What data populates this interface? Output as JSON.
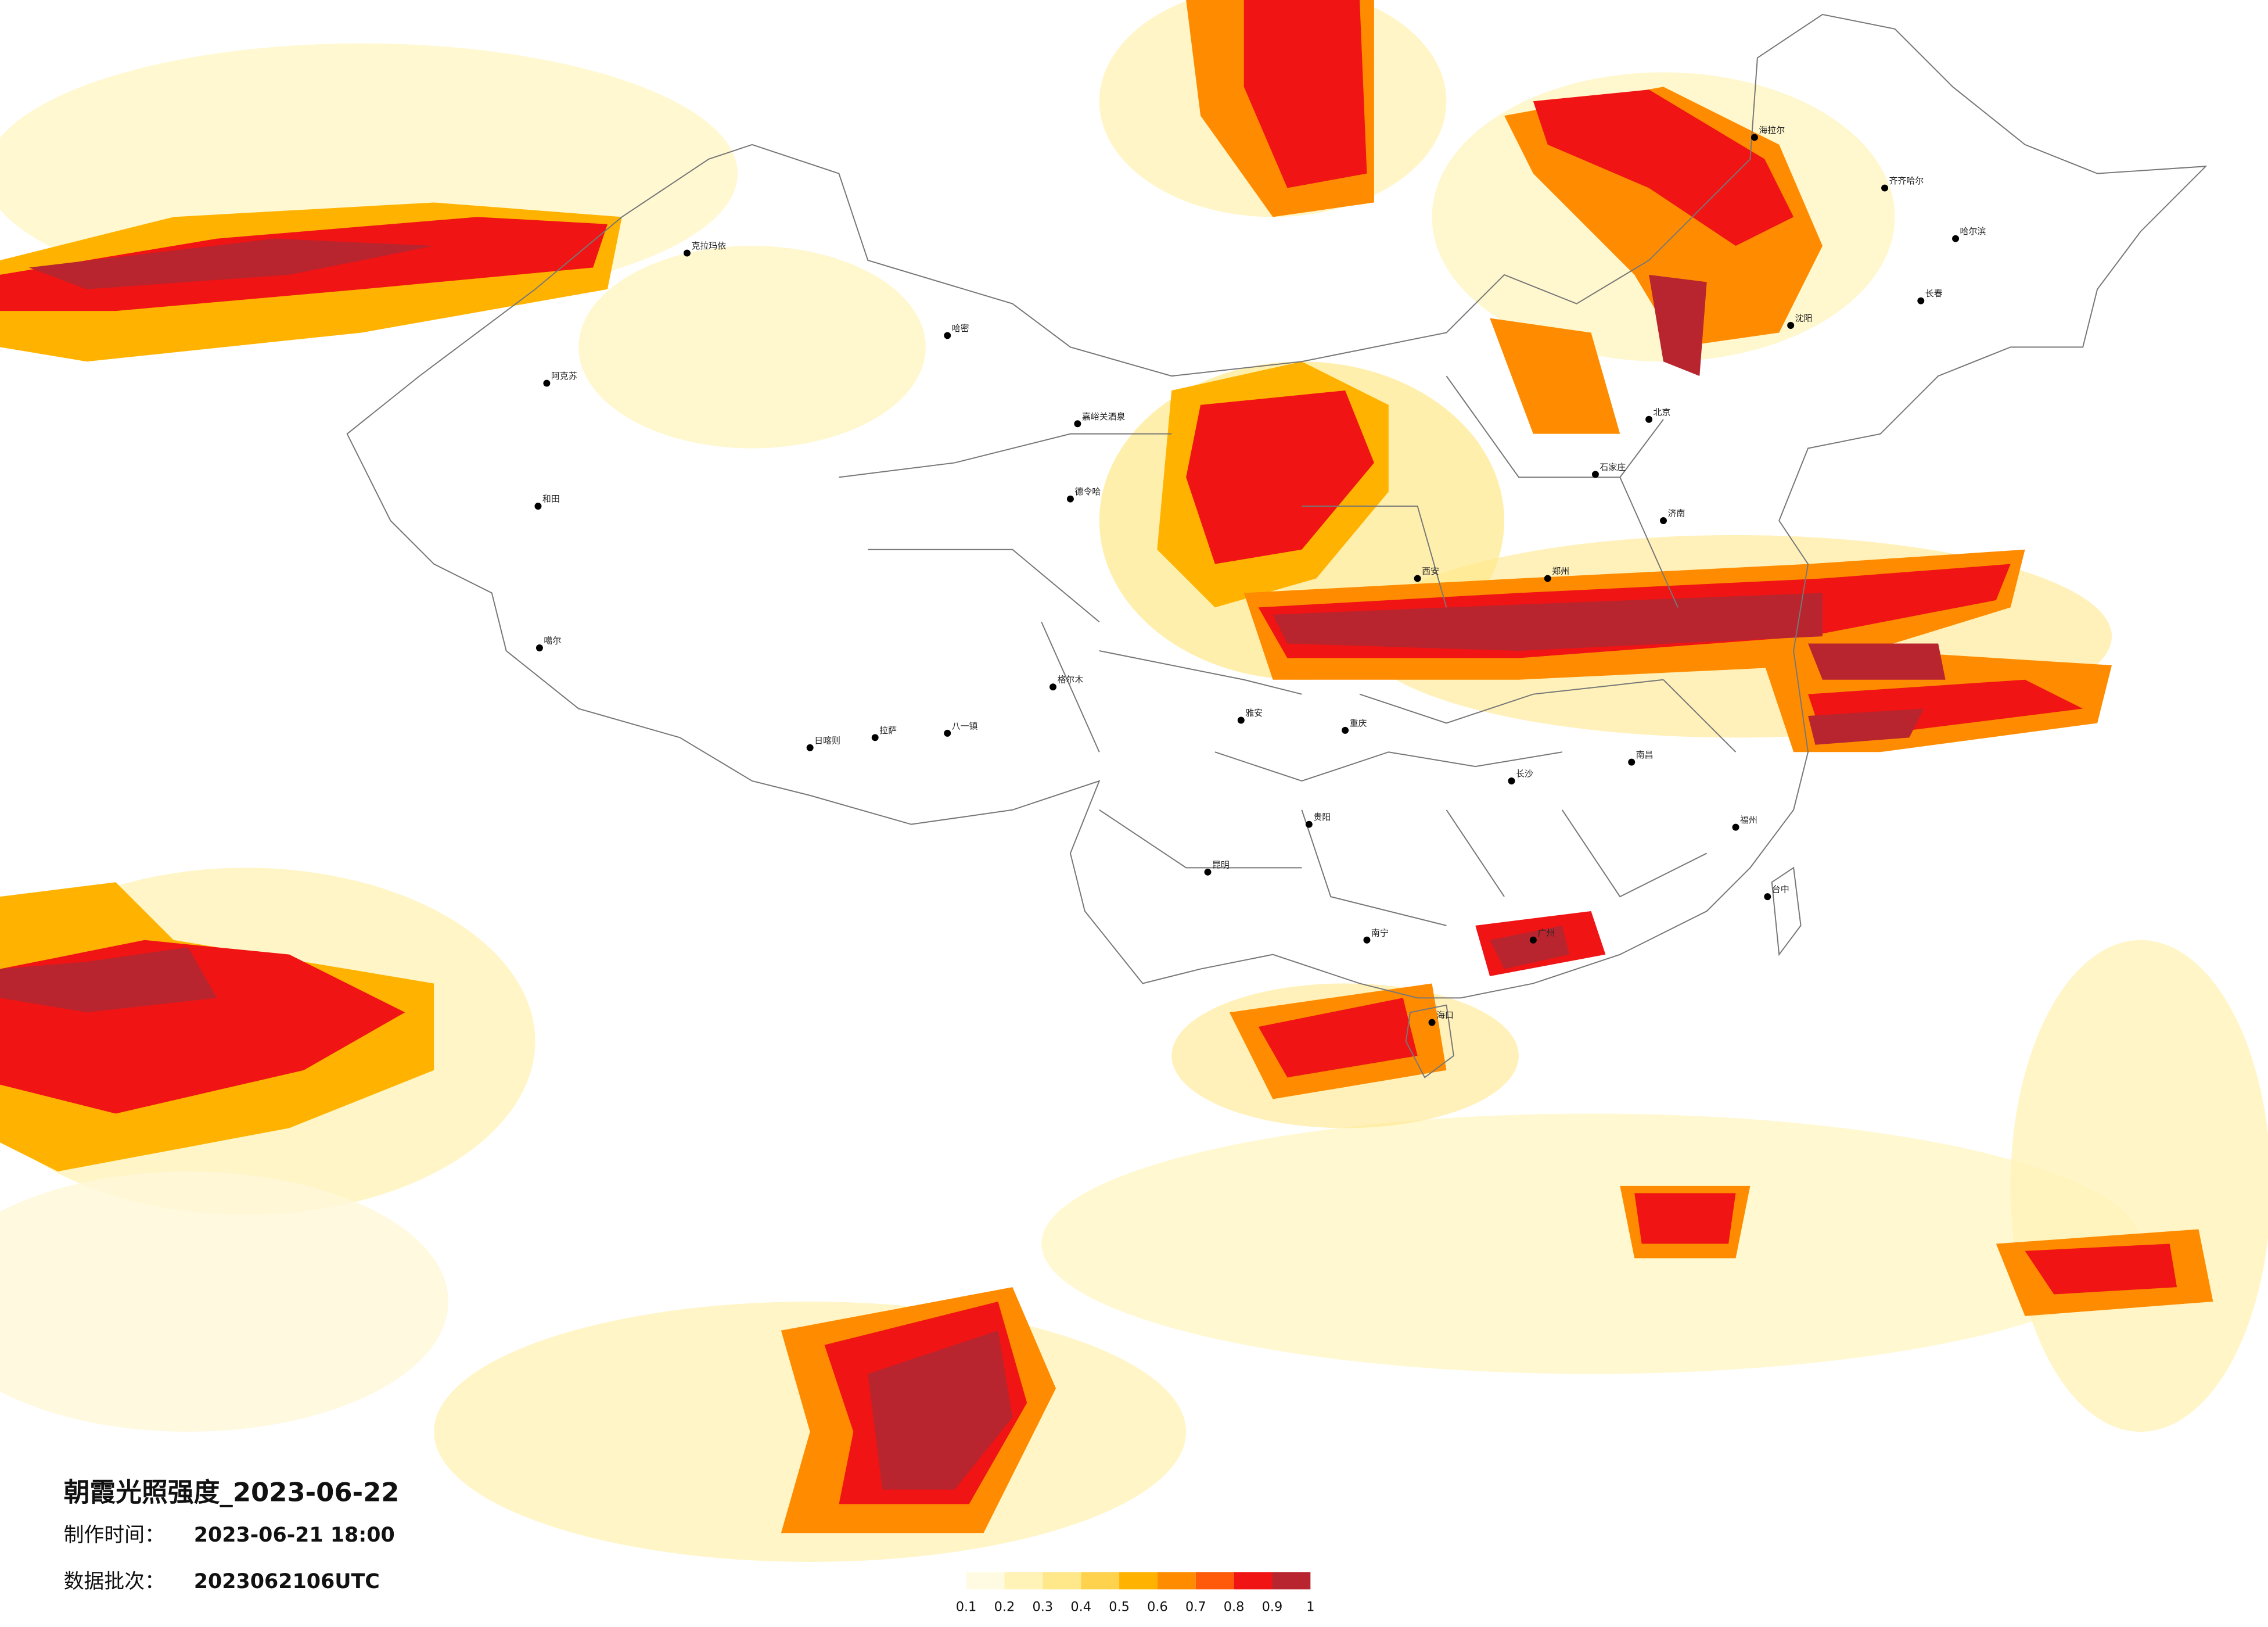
{
  "title": "朝霞光照强度_2023-06-22",
  "made_time": {
    "label": "制作时间：",
    "value": "2023-06-21 18:00"
  },
  "batch": {
    "label": "数据批次：",
    "value": "2023062106UTC"
  },
  "legend": {
    "ticks": [
      0.1,
      0.2,
      0.3,
      0.4,
      0.5,
      0.6,
      0.7,
      0.8,
      0.9,
      1
    ],
    "colors": [
      "#fffbe3",
      "#fff3b8",
      "#ffe88a",
      "#ffd24d",
      "#ffb300",
      "#ff8c00",
      "#ff5a0a",
      "#f01414",
      "#b8252f"
    ]
  },
  "cities": [
    "克拉玛依",
    "阿克苏",
    "和田",
    "哈密",
    "嘉峪关酒泉",
    "德令哈",
    "格尔木",
    "拉萨",
    "日喀则",
    "八一镇",
    "噶尔",
    "雅安",
    "昆明",
    "贵阳",
    "南宁",
    "海口",
    "长沙",
    "南昌",
    "福州",
    "台中",
    "北京",
    "石家庄",
    "沈阳",
    "长春",
    "哈尔滨",
    "海拉尔",
    "齐齐哈尔",
    "济南",
    "郑州",
    "西安",
    "重庆",
    "广州"
  ]
}
